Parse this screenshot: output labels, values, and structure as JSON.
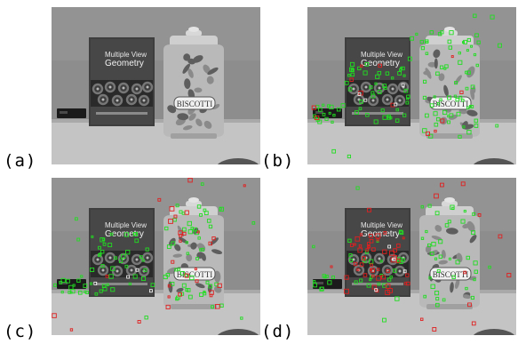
{
  "figure": {
    "panels": [
      {
        "label": "(a)",
        "book_title": "Multiple View Geometry",
        "jar_text": "BISCOTTI",
        "markers": "none"
      },
      {
        "label": "(b)",
        "book_title": "Multiple View Geometry",
        "jar_text": "BISCOTTI",
        "markers": "green keypoints with few red outliers"
      },
      {
        "label": "(c)",
        "book_title": "Multiple View Geometry",
        "jar_text": "BISCOTTI",
        "markers": "green and red keypoints"
      },
      {
        "label": "(d)",
        "book_title": "Multiple View Geometry",
        "jar_text": "BISCOTTI",
        "markers": "many red keypoints on book, green on jar"
      }
    ],
    "colors": {
      "inlier": "#22dd22",
      "outlier": "#e02020",
      "other": "#ffffff"
    }
  }
}
